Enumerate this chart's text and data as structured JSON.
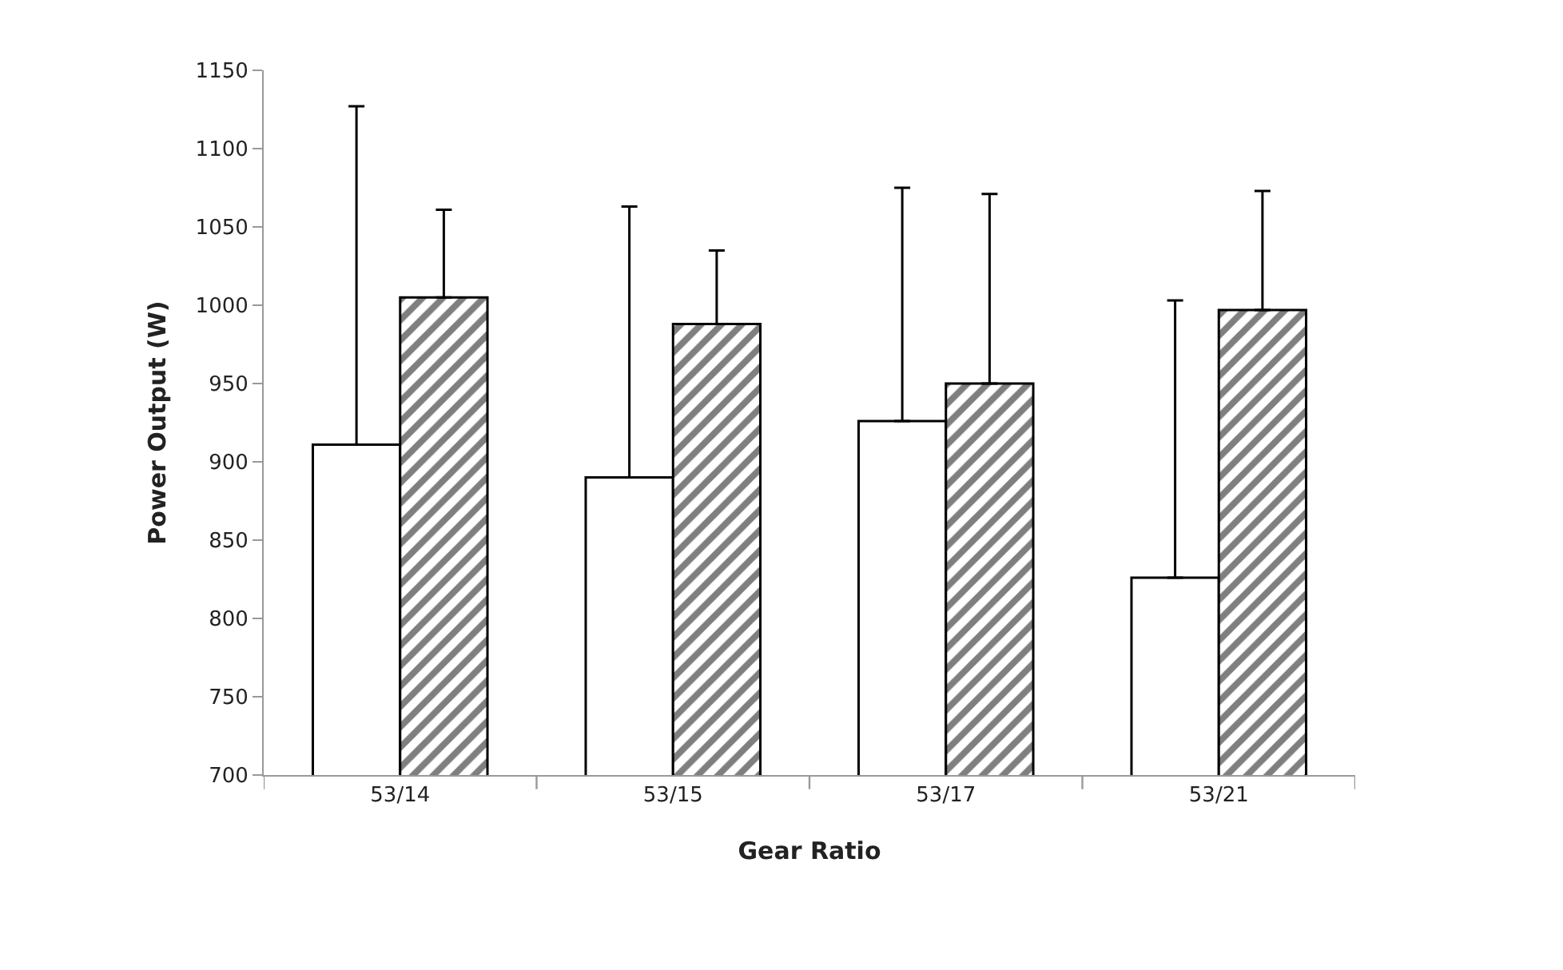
{
  "chart_data": {
    "type": "bar",
    "xlabel": "Gear Ratio",
    "ylabel": "Power Output (W)",
    "categories": [
      "53/14",
      "53/15",
      "53/17",
      "53/21"
    ],
    "series": [
      {
        "color": "#ffffff",
        "values": [
          911,
          890,
          926,
          826
        ],
        "errors": [
          [
            911,
            1127
          ],
          [
            890,
            1063
          ],
          [
            926,
            1075
          ],
          [
            826,
            1003
          ]
        ]
      },
      {
        "color": "#000000",
        "values": [
          1005,
          988,
          950,
          997
        ],
        "errors": [
          [
            1005,
            1061
          ],
          [
            988,
            1035
          ],
          [
            950,
            1071
          ],
          [
            997,
            1073
          ]
        ]
      }
    ],
    "ylim": [
      700,
      1150
    ],
    "yticks": [
      700,
      750,
      800,
      850,
      900,
      950,
      1000,
      1050,
      1100,
      1150
    ]
  }
}
